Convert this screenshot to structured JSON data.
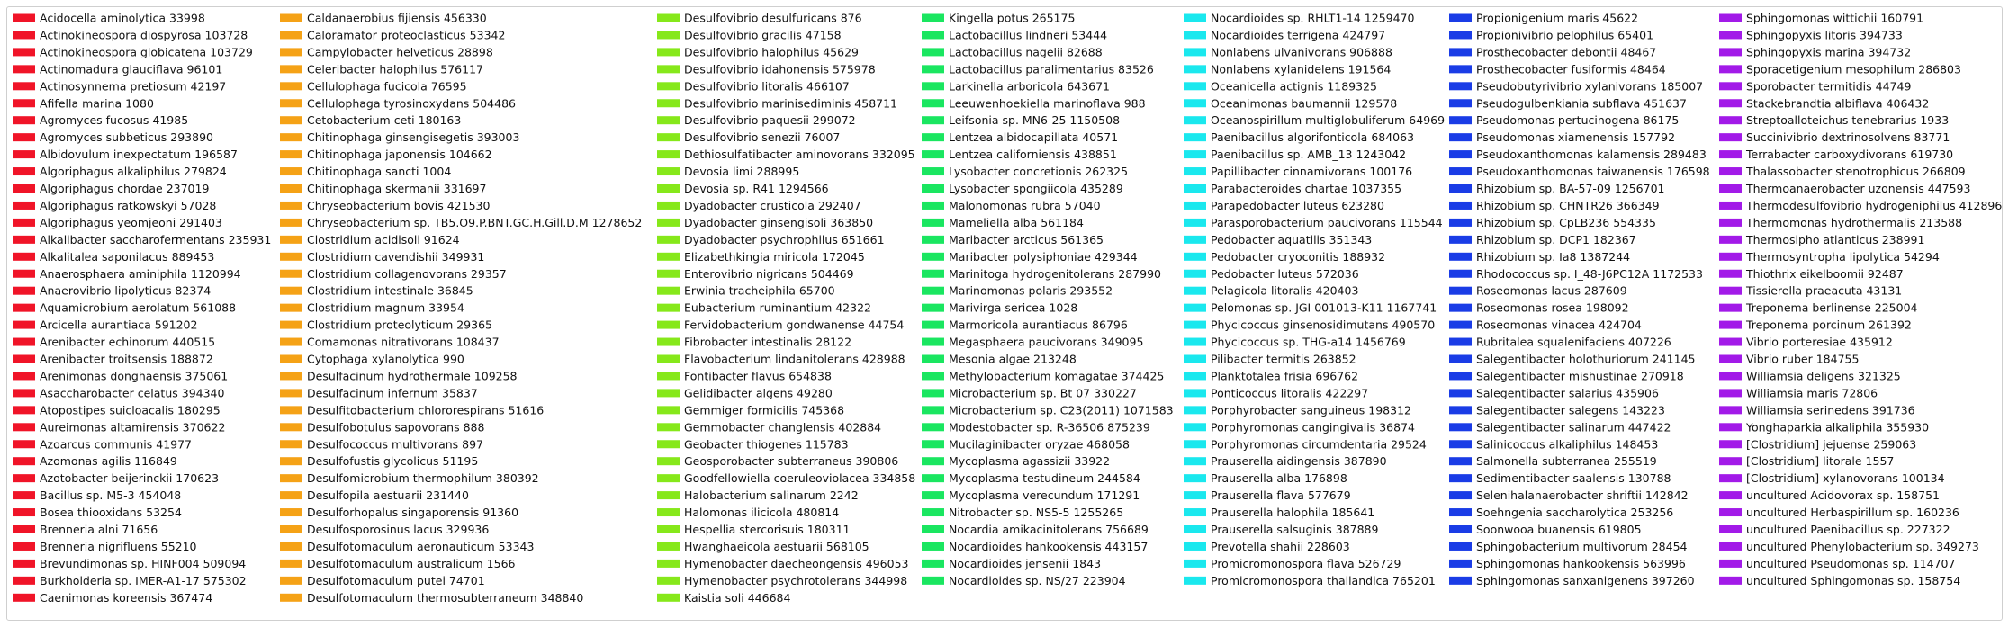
{
  "chart_data": {
    "type": "legend",
    "title": "",
    "legend_placement": "center",
    "columns": [
      {
        "color": "#f01428",
        "entries": [
          "Acidocella aminolytica 33998",
          "Actinokineospora diospyrosa 103728",
          "Actinokineospora globicatena 103729",
          "Actinomadura glauciflava 96101",
          "Actinosynnema pretiosum 42197",
          "Afifella marina 1080",
          "Agromyces fucosus 41985",
          "Agromyces subbeticus 293890",
          "Albidovulum inexpectatum 196587",
          "Algoriphagus alkaliphilus 279824",
          "Algoriphagus chordae 237019",
          "Algoriphagus ratkowskyi 57028",
          "Algoriphagus yeomjeoni 291403",
          "Alkalibacter saccharofermentans 235931",
          "Alkalitalea saponilacus 889453",
          "Anaerosphaera aminiphila 1120994",
          "Anaerovibrio lipolyticus 82374",
          "Aquamicrobium aerolatum 561088",
          "Arcicella aurantiaca 591202",
          "Arenibacter echinorum 440515",
          "Arenibacter troitsensis 188872",
          "Arenimonas donghaensis 375061",
          "Asaccharobacter celatus 394340",
          "Atopostipes suicloacalis 180295",
          "Aureimonas altamirensis 370622",
          "Azoarcus communis 41977",
          "Azomonas agilis 116849",
          "Azotobacter beijerinckii 170623",
          "Bacillus sp. M5-3 454048",
          "Bosea thiooxidans 53254",
          "Brenneria alni 71656",
          "Brenneria nigrifluens 55210",
          "Brevundimonas sp. HINF004 509094",
          "Burkholderia sp. IMER-A1-17 575302",
          "Caenimonas koreensis 367474"
        ]
      },
      {
        "color": "#f5a216",
        "entries": [
          "Caldanaerobius fijiensis 456330",
          "Caloramator proteoclasticus 53342",
          "Campylobacter helveticus 28898",
          "Celeribacter halophilus 576117",
          "Cellulophaga fucicola 76595",
          "Cellulophaga tyrosinoxydans 504486",
          "Cetobacterium ceti 180163",
          "Chitinophaga ginsengisegetis 393003",
          "Chitinophaga japonensis 104662",
          "Chitinophaga sancti 1004",
          "Chitinophaga skermanii 331697",
          "Chryseobacterium bovis 421530",
          "Chryseobacterium sp. TB5.O9.P.BNT.GC.H.Gill.D.M 1278652",
          "Clostridium acidisoli 91624",
          "Clostridium cavendishii 349931",
          "Clostridium collagenovorans 29357",
          "Clostridium intestinale 36845",
          "Clostridium magnum 33954",
          "Clostridium proteolyticum 29365",
          "Comamonas nitrativorans 108437",
          "Cytophaga xylanolytica 990",
          "Desulfacinum hydrothermale 109258",
          "Desulfacinum infernum 35837",
          "Desulfitobacterium chlororespirans 51616",
          "Desulfobotulus sapovorans 888",
          "Desulfococcus multivorans 897",
          "Desulfofustis glycolicus 51195",
          "Desulfomicrobium thermophilum 380392",
          "Desulfopila aestuarii 231440",
          "Desulforhopalus singaporensis 91360",
          "Desulfosporosinus lacus 329936",
          "Desulfotomaculum aeronauticum 53343",
          "Desulfotomaculum australicum 1566",
          "Desulfotomaculum putei 74701",
          "Desulfotomaculum thermosubterraneum 348840"
        ]
      },
      {
        "color": "#86e81a",
        "entries": [
          "Desulfovibrio desulfuricans 876",
          "Desulfovibrio gracilis 47158",
          "Desulfovibrio halophilus 45629",
          "Desulfovibrio idahonensis 575978",
          "Desulfovibrio litoralis 466107",
          "Desulfovibrio marinisediminis 458711",
          "Desulfovibrio paquesii 299072",
          "Desulfovibrio senezii 76007",
          "Dethiosulfatibacter aminovorans 332095",
          "Devosia limi 288995",
          "Devosia sp. R41 1294566",
          "Dyadobacter crusticola 292407",
          "Dyadobacter ginsengisoli 363850",
          "Dyadobacter psychrophilus 651661",
          "Elizabethkingia miricola 172045",
          "Enterovibrio nigricans 504469",
          "Erwinia tracheiphila 65700",
          "Eubacterium ruminantium 42322",
          "Fervidobacterium gondwanense 44754",
          "Fibrobacter intestinalis 28122",
          "Flavobacterium lindanitolerans 428988",
          "Fontibacter flavus 654838",
          "Gelidibacter algens 49280",
          "Gemmiger formicilis 745368",
          "Gemmobacter changlensis 402884",
          "Geobacter thiogenes 115783",
          "Geosporobacter subterraneus 390806",
          "Goodfellowiella coeruleoviolacea 334858",
          "Halobacterium salinarum 2242",
          "Halomonas ilicicola 480814",
          "Hespellia stercorisuis 180311",
          "Hwanghaeicola aestuarii 568105",
          "Hymenobacter daecheongensis 496053",
          "Hymenobacter psychrotolerans 344998",
          "Kaistia soli 446684"
        ]
      },
      {
        "color": "#1ae660",
        "entries": [
          "Kingella potus 265175",
          "Lactobacillus lindneri 53444",
          "Lactobacillus nagelii 82688",
          "Lactobacillus paralimentarius 83526",
          "Larkinella arboricola 643671",
          "Leeuwenhoekiella marinoflava 988",
          "Leifsonia sp. MN6-25 1150508",
          "Lentzea albidocapillata 40571",
          "Lentzea californiensis 438851",
          "Lysobacter concretionis 262325",
          "Lysobacter spongiicola 435289",
          "Malonomonas rubra 57040",
          "Mameliella alba 561184",
          "Maribacter arcticus 561365",
          "Maribacter polysiphoniae 429344",
          "Marinitoga hydrogenitolerans 287990",
          "Marinomonas polaris 293552",
          "Marivirga sericea 1028",
          "Marmoricola aurantiacus 86796",
          "Megasphaera paucivorans 349095",
          "Mesonia algae 213248",
          "Methylobacterium komagatae 374425",
          "Microbacterium sp. Bt 07 330227",
          "Microbacterium sp. C23(2011) 1071583",
          "Modestobacter sp. R-36506 875239",
          "Mucilaginibacter oryzae 468058",
          "Mycoplasma agassizii 33922",
          "Mycoplasma testudineum 244584",
          "Mycoplasma verecundum 171291",
          "Nitrobacter sp. NS5-5 1255265",
          "Nocardia amikacinitolerans 756689",
          "Nocardioides hankookensis 443157",
          "Nocardioides jensenii 1843",
          "Nocardioides sp. NS/27 223904"
        ]
      },
      {
        "color": "#1ae8ee",
        "entries": [
          "Nocardioides sp. RHLT1-14 1259470",
          "Nocardioides terrigena 424797",
          "Nonlabens ulvanivorans 906888",
          "Nonlabens xylanidelens 191564",
          "Oceanicella actignis 1189325",
          "Oceanimonas baumannii 129578",
          "Oceanospirillum multiglobuliferum 64969",
          "Paenibacillus algorifonticola 684063",
          "Paenibacillus sp. AMB_13 1243042",
          "Papillibacter cinnamivorans 100176",
          "Parabacteroides chartae 1037355",
          "Parapedobacter luteus 623280",
          "Parasporobacterium paucivorans 115544",
          "Pedobacter aquatilis 351343",
          "Pedobacter cryoconitis 188932",
          "Pedobacter luteus 572036",
          "Pelagicola litoralis 420403",
          "Pelomonas sp. JGI 001013-K11 1167741",
          "Phycicoccus ginsenosidimutans 490570",
          "Phycicoccus sp. THG-a14 1456769",
          "Pilibacter termitis 263852",
          "Planktotalea frisia 696762",
          "Ponticoccus litoralis 422297",
          "Porphyrobacter sanguineus 198312",
          "Porphyromonas cangingivalis 36874",
          "Porphyromonas circumdentaria 29524",
          "Prauserella aidingensis 387890",
          "Prauserella alba 176898",
          "Prauserella flava 577679",
          "Prauserella halophila 185641",
          "Prauserella salsuginis 387889",
          "Prevotella shahii 228603",
          "Promicromonospora flava 526729",
          "Promicromonospora thailandica 765201"
        ]
      },
      {
        "color": "#1a3ce6",
        "entries": [
          "Propionigenium maris 45622",
          "Propionivibrio pelophilus 65401",
          "Prosthecobacter debontii 48467",
          "Prosthecobacter fusiformis 48464",
          "Pseudobutyrivibrio xylanivorans 185007",
          "Pseudogulbenkiania subflava 451637",
          "Pseudomonas pertucinogena 86175",
          "Pseudomonas xiamenensis 157792",
          "Pseudoxanthomonas kalamensis 289483",
          "Pseudoxanthomonas taiwanensis 176598",
          "Rhizobium sp. BA-57-09 1256701",
          "Rhizobium sp. CHNTR26 366349",
          "Rhizobium sp. CpLB236 554335",
          "Rhizobium sp. DCP1 182367",
          "Rhizobium sp. Ia8 1387244",
          "Rhodococcus sp. I_48-J6PC12A 1172533",
          "Roseomonas lacus 287609",
          "Roseomonas rosea 198092",
          "Roseomonas vinacea 424704",
          "Rubritalea squalenifaciens 407226",
          "Salegentibacter holothuriorum 241145",
          "Salegentibacter mishustinae 270918",
          "Salegentibacter salarius 435906",
          "Salegentibacter salegens 143223",
          "Salegentibacter salinarum 447422",
          "Salinicoccus alkaliphilus 148453",
          "Salmonella subterranea 255519",
          "Sedimentibacter saalensis 130788",
          "Selenihalanaerobacter shriftii 142842",
          "Soehngenia saccharolytica 253256",
          "Soonwooa buanensis 619805",
          "Sphingobacterium multivorum 28454",
          "Sphingomonas hankookensis 563996",
          "Sphingomonas sanxanigenens 397260"
        ]
      },
      {
        "color": "#a21ae8",
        "entries": [
          "Sphingomonas wittichii 160791",
          "Sphingopyxis litoris 394733",
          "Sphingopyxis marina 394732",
          "Sporacetigenium mesophilum 286803",
          "Sporobacter termitidis 44749",
          "Stackebrandtia albiflava 406432",
          "Streptoalloteichus tenebrarius 1933",
          "Succinivibrio dextrinosolvens 83771",
          "Terrabacter carboxydivorans 619730",
          "Thalassobacter stenotrophicus 266809",
          "Thermoanaerobacter uzonensis 447593",
          "Thermodesulfovibrio hydrogeniphilus 412896",
          "Thermomonas hydrothermalis 213588",
          "Thermosipho atlanticus 238991",
          "Thermosyntropha lipolytica 54294",
          "Thiothrix eikelboomii 92487",
          "Tissierella praeacuta 43131",
          "Treponema berlinense 225004",
          "Treponema porcinum 261392",
          "Vibrio porteresiae 435912",
          "Vibrio ruber 184755",
          "Williamsia deligens 321325",
          "Williamsia maris 72806",
          "Williamsia serinedens 391736",
          "Yonghaparkia alkaliphila 355930",
          "[Clostridium] jejuense 259063",
          "[Clostridium] litorale 1557",
          "[Clostridium] xylanovorans 100134",
          "uncultured Acidovorax sp. 158751",
          "uncultured Herbaspirillum sp. 160236",
          "uncultured Paenibacillus sp. 227322",
          "uncultured Phenylobacterium sp. 349273",
          "uncultured Pseudomonas sp. 114707",
          "uncultured Sphingomonas sp. 158754"
        ]
      }
    ]
  }
}
